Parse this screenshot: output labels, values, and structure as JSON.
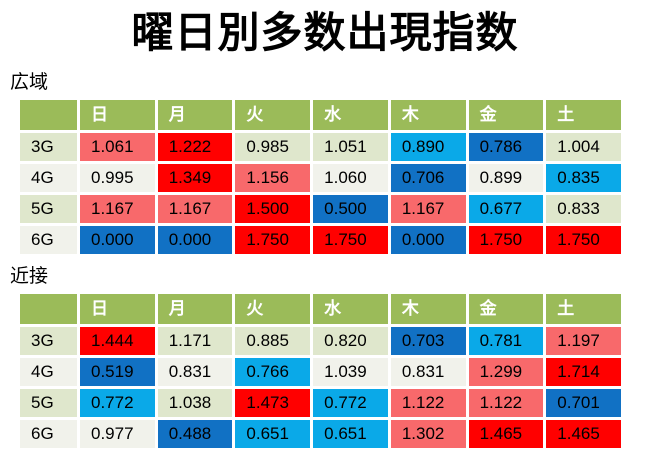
{
  "title": "曜日別多数出現指数",
  "day_headers": [
    "日",
    "月",
    "火",
    "水",
    "木",
    "金",
    "土"
  ],
  "row_labels": [
    "3G",
    "4G",
    "5G",
    "6G"
  ],
  "colors": {
    "header_bg": "#9BBB59",
    "header_text": "#FFFFFF",
    "band_odd": "#DFE7CC",
    "band_even": "#F1F2EB",
    "red": "#FF0000",
    "salmon": "#F8696B",
    "cyan": "#0AA9E8",
    "blue": "#1171C4",
    "value_text": "#000000"
  },
  "sections": [
    {
      "label": "広域",
      "rows": [
        {
          "label": "3G",
          "values": [
            1.061,
            1.222,
            0.985,
            1.051,
            0.89,
            0.786,
            1.004
          ],
          "colors": [
            "salmon",
            "red",
            "band",
            "band",
            "cyan",
            "blue",
            "band"
          ]
        },
        {
          "label": "4G",
          "values": [
            0.995,
            1.349,
            1.156,
            1.06,
            0.706,
            0.899,
            0.835
          ],
          "colors": [
            "band",
            "red",
            "salmon",
            "band",
            "blue",
            "band",
            "cyan"
          ]
        },
        {
          "label": "5G",
          "values": [
            1.167,
            1.167,
            1.5,
            0.5,
            1.167,
            0.677,
            0.833
          ],
          "colors": [
            "salmon",
            "salmon",
            "red",
            "blue",
            "salmon",
            "cyan",
            "band"
          ]
        },
        {
          "label": "6G",
          "values": [
            0.0,
            0.0,
            1.75,
            1.75,
            0.0,
            1.75,
            1.75
          ],
          "colors": [
            "blue",
            "blue",
            "red",
            "red",
            "blue",
            "red",
            "red"
          ]
        }
      ]
    },
    {
      "label": "近接",
      "rows": [
        {
          "label": "3G",
          "values": [
            1.444,
            1.171,
            0.885,
            0.82,
            0.703,
            0.781,
            1.197
          ],
          "colors": [
            "red",
            "band",
            "band",
            "band",
            "blue",
            "cyan",
            "salmon"
          ]
        },
        {
          "label": "4G",
          "values": [
            0.519,
            0.831,
            0.766,
            1.039,
            0.831,
            1.299,
            1.714
          ],
          "colors": [
            "blue",
            "band",
            "cyan",
            "band",
            "band",
            "salmon",
            "red"
          ]
        },
        {
          "label": "5G",
          "values": [
            0.772,
            1.038,
            1.473,
            0.772,
            1.122,
            1.122,
            0.701
          ],
          "colors": [
            "cyan",
            "band",
            "red",
            "cyan",
            "salmon",
            "salmon",
            "blue"
          ]
        },
        {
          "label": "6G",
          "values": [
            0.977,
            0.488,
            0.651,
            0.651,
            1.302,
            1.465,
            1.465
          ],
          "colors": [
            "band",
            "blue",
            "cyan",
            "cyan",
            "salmon",
            "red",
            "red"
          ]
        }
      ]
    }
  ],
  "chart_data": [
    {
      "type": "heatmap",
      "title": "広域",
      "columns": [
        "日",
        "月",
        "火",
        "水",
        "木",
        "金",
        "土"
      ],
      "rows": [
        "3G",
        "4G",
        "5G",
        "6G"
      ],
      "values": [
        [
          1.061,
          1.222,
          0.985,
          1.051,
          0.89,
          0.786,
          1.004
        ],
        [
          0.995,
          1.349,
          1.156,
          1.06,
          0.706,
          0.899,
          0.835
        ],
        [
          1.167,
          1.167,
          1.5,
          0.5,
          1.167,
          0.677,
          0.833
        ],
        [
          0.0,
          0.0,
          1.75,
          1.75,
          0.0,
          1.75,
          1.75
        ]
      ],
      "color_coding": "red=high, blue=low, neutral=near 1.0",
      "value_format": "3 decimals"
    },
    {
      "type": "heatmap",
      "title": "近接",
      "columns": [
        "日",
        "月",
        "火",
        "水",
        "木",
        "金",
        "土"
      ],
      "rows": [
        "3G",
        "4G",
        "5G",
        "6G"
      ],
      "values": [
        [
          1.444,
          1.171,
          0.885,
          0.82,
          0.703,
          0.781,
          1.197
        ],
        [
          0.519,
          0.831,
          0.766,
          1.039,
          0.831,
          1.299,
          1.714
        ],
        [
          0.772,
          1.038,
          1.473,
          0.772,
          1.122,
          1.122,
          0.701
        ],
        [
          0.977,
          0.488,
          0.651,
          0.651,
          1.302,
          1.465,
          1.465
        ]
      ],
      "color_coding": "red=high, blue=low, neutral=near 1.0",
      "value_format": "3 decimals"
    }
  ]
}
